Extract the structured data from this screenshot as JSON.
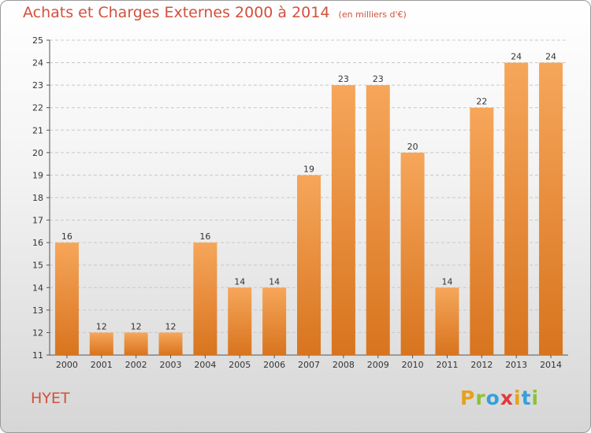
{
  "title": {
    "main": "Achats et Charges Externes 2000 à 2014",
    "unit": "(en milliers d'€)"
  },
  "commune": "HYET",
  "logo": {
    "text": "Proxiti",
    "letters": [
      {
        "ch": "P",
        "color": "#e6a21c"
      },
      {
        "ch": "r",
        "color": "#8cc23a"
      },
      {
        "ch": "o",
        "color": "#33a0dc"
      },
      {
        "ch": "x",
        "color": "#e23a3a"
      },
      {
        "ch": "i",
        "color": "#e6a21c"
      },
      {
        "ch": "t",
        "color": "#33a0dc"
      },
      {
        "ch": "i",
        "color": "#8cc23a"
      }
    ]
  },
  "colors": {
    "title": "#d2503c",
    "bar_light": "#f6a65a",
    "bar_dark": "#d8741e",
    "grid": "#c8c8c8"
  },
  "chart_data": {
    "type": "bar",
    "title": "Achats et Charges Externes 2000 à 2014",
    "subtitle": "(en milliers d'€)",
    "categories": [
      "2000",
      "2001",
      "2002",
      "2003",
      "2004",
      "2005",
      "2006",
      "2007",
      "2008",
      "2009",
      "2010",
      "2011",
      "2012",
      "2013",
      "2014"
    ],
    "values": [
      16,
      12,
      12,
      12,
      16,
      14,
      14,
      19,
      23,
      23,
      20,
      14,
      22,
      24,
      24
    ],
    "ylim": [
      11,
      25
    ],
    "yticks": [
      11,
      12,
      13,
      14,
      15,
      16,
      17,
      18,
      19,
      20,
      21,
      22,
      23,
      24,
      25
    ],
    "grid": "horizontal dashed",
    "data_labels": true
  }
}
